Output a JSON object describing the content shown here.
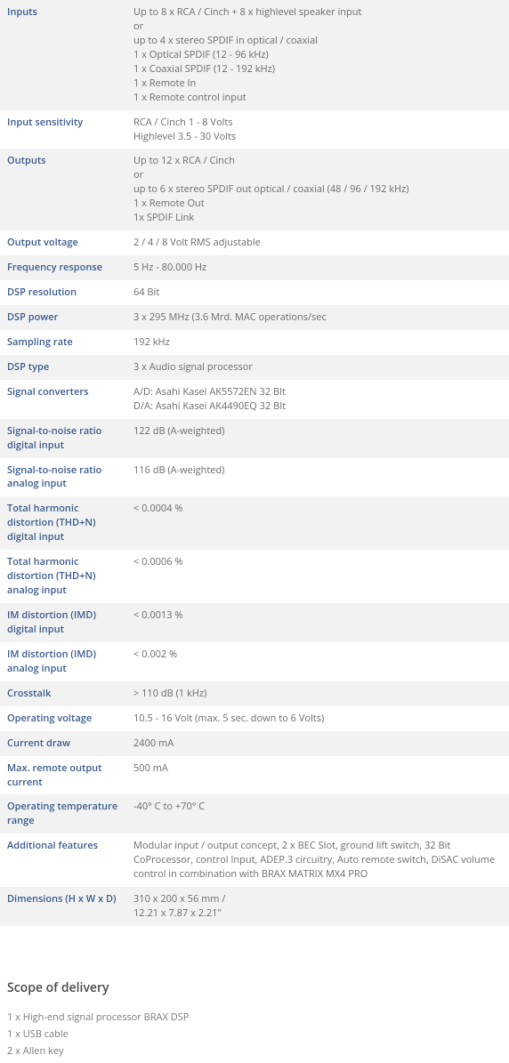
{
  "colors": {
    "label_color": "#3a5b8c",
    "value_color": "#6b6b6b",
    "row_alt_bg": "#f2f2f2",
    "row_bg": "#ffffff",
    "heading_color": "#4a4a4a"
  },
  "specs": [
    {
      "label": "Inputs",
      "value_lines": [
        "Up to 8 x RCA / Cinch + 8 x highlevel speaker input",
        "or",
        "up to 4 x stereo SPDIF in optical / coaxial",
        "1 x Optical SPDIF (12 - 96 kHz)",
        "1 x Coaxial SPDIF (12 - 192 kHz)",
        "1 x Remote In",
        "1 x Remote control input"
      ]
    },
    {
      "label": "Input sensitivity",
      "value_lines": [
        "RCA / Cinch 1 - 8 Volts",
        "Highlevel 3.5 - 30 Volts"
      ]
    },
    {
      "label": "Outputs",
      "value_lines": [
        "Up to 12 x RCA / Cinch",
        "or",
        "up to 6 x stereo SPDIF out optical / coaxial (48 / 96 / 192 kHz)",
        "1 x Remote Out",
        "1x SPDIF Link"
      ]
    },
    {
      "label": "Output voltage",
      "value_lines": [
        "2 / 4 / 8 Volt RMS adjustable"
      ]
    },
    {
      "label": "Frequency response",
      "value_lines": [
        "5 Hz - 80.000 Hz"
      ]
    },
    {
      "label": "DSP resolution",
      "value_lines": [
        "64 Bit"
      ]
    },
    {
      "label": "DSP power",
      "value_lines": [
        "3 x 295 MHz (3.6 Mrd. MAC operations/sec"
      ]
    },
    {
      "label": "Sampling rate",
      "value_lines": [
        "192 kHz"
      ]
    },
    {
      "label": "DSP type",
      "value_lines": [
        "3 x Audio signal processor"
      ]
    },
    {
      "label": "Signal converters",
      "value_lines": [
        "A/D: Asahi Kasei AK5572EN 32 BIt",
        "D/A: Asahi Kasei AK4490EQ 32 BIt"
      ]
    },
    {
      "label": "Signal-to-noise ratio digital input",
      "value_lines": [
        "122 dB (A-weighted)"
      ]
    },
    {
      "label": "Signal-to-noise ratio analog input",
      "value_lines": [
        "116 dB (A-weighted)"
      ]
    },
    {
      "label": "Total harmonic distortion (THD+N) digital input",
      "value_lines": [
        "< 0.0004 %"
      ]
    },
    {
      "label": "Total harmonic distortion (THD+N) analog input",
      "value_lines": [
        "< 0.0006 %"
      ]
    },
    {
      "label": "IM distortion (IMD) digital input",
      "value_lines": [
        "< 0.0013 %"
      ]
    },
    {
      "label": "IM distortion (IMD) analog input",
      "value_lines": [
        "< 0.002 %"
      ]
    },
    {
      "label": "Crosstalk",
      "value_lines": [
        "> 110 dB (1 kHz)"
      ]
    },
    {
      "label": "Operating voltage",
      "value_lines": [
        "10.5 - 16 Volt (max. 5 sec. down to 6 Volts)"
      ]
    },
    {
      "label": "Current draw",
      "value_lines": [
        "2400 mA"
      ]
    },
    {
      "label": "Max. remote output current",
      "value_lines": [
        "500 mA"
      ]
    },
    {
      "label": "Operating temperature range",
      "value_lines": [
        "-40° C to +70° C"
      ]
    },
    {
      "label": "Additional features",
      "value_lines": [
        "Modular input / output concept, 2 x BEC Slot, ground lift switch, 32 Bit CoProcessor, control Input, ADEP.3 circuitry, Auto remote switch, DiSAC volume control in combination with BRAX MATRIX MX4 PRO"
      ]
    },
    {
      "label": "Dimensions (H x W x D)",
      "value_lines": [
        "310 x 200 x 56 mm /",
        "12.21 x 7.87 x 2.21\""
      ]
    }
  ],
  "scope_heading": "Scope of delivery",
  "scope_items": [
    "1 x High-end signal processor BRAX DSP",
    "1 x USB cable",
    "2 x Allen key"
  ]
}
